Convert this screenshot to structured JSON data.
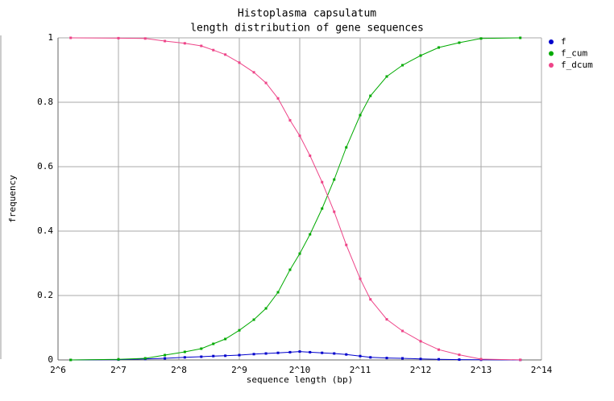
{
  "chart_data": {
    "type": "line",
    "title": "Histoplasma capsulatum",
    "subtitle": "length distribution of gene sequences",
    "x_label": "sequence length (bp)",
    "y_label": "frequency",
    "x_log_base": 2,
    "xlim": [
      64,
      16384
    ],
    "xticks": [
      {
        "value": 64,
        "label": "2^6"
      },
      {
        "value": 128,
        "label": "2^7"
      },
      {
        "value": 256,
        "label": "2^8"
      },
      {
        "value": 512,
        "label": "2^9"
      },
      {
        "value": 1024,
        "label": "2^10"
      },
      {
        "value": 2048,
        "label": "2^11"
      },
      {
        "value": 4096,
        "label": "2^12"
      },
      {
        "value": 8192,
        "label": "2^13"
      },
      {
        "value": 16384,
        "label": "2^14"
      }
    ],
    "ylim": [
      0,
      1
    ],
    "yticks": [
      0,
      0.2,
      0.4,
      0.6,
      0.8,
      1
    ],
    "grid": true,
    "legend": "right",
    "x": [
      74,
      128,
      174,
      218,
      274,
      331,
      380,
      436,
      512,
      605,
      695,
      798,
      916,
      1024,
      1152,
      1323,
      1520,
      1746,
      2048,
      2304,
      2778,
      3327,
      4096,
      5043,
      6380,
      8192,
      12850
    ],
    "series": [
      {
        "name": "f",
        "color": "#0000cc",
        "values": [
          0,
          0.001,
          0.003,
          0.005,
          0.008,
          0.01,
          0.012,
          0.013,
          0.015,
          0.018,
          0.02,
          0.022,
          0.024,
          0.026,
          0.024,
          0.022,
          0.02,
          0.017,
          0.012,
          0.008,
          0.006,
          0.005,
          0.003,
          0.002,
          0.001,
          0.0005,
          0
        ]
      },
      {
        "name": "f_cum",
        "color": "#00aa00",
        "values": [
          0,
          0.002,
          0.005,
          0.015,
          0.025,
          0.035,
          0.05,
          0.065,
          0.092,
          0.125,
          0.16,
          0.21,
          0.28,
          0.33,
          0.39,
          0.47,
          0.56,
          0.66,
          0.76,
          0.82,
          0.88,
          0.915,
          0.945,
          0.97,
          0.985,
          0.998,
          1
        ]
      },
      {
        "name": "f_dcum",
        "color": "#ee4488",
        "values": [
          1,
          0.999,
          0.998,
          0.99,
          0.983,
          0.975,
          0.962,
          0.948,
          0.923,
          0.893,
          0.86,
          0.812,
          0.744,
          0.696,
          0.634,
          0.552,
          0.46,
          0.357,
          0.252,
          0.188,
          0.126,
          0.09,
          0.058,
          0.032,
          0.016,
          0.0025,
          0.0003
        ]
      }
    ]
  }
}
